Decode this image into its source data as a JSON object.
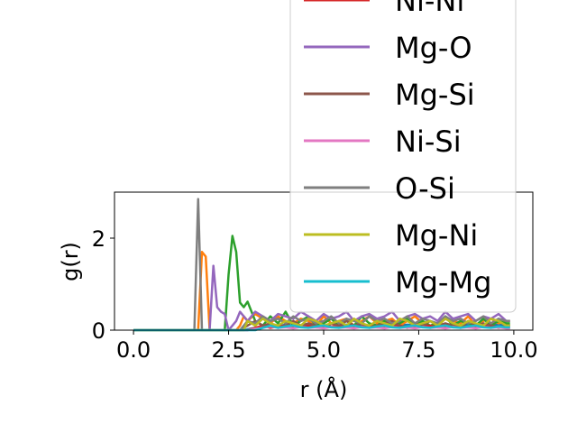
{
  "chart_data": {
    "type": "line",
    "title": "",
    "xlabel": "r (Å)",
    "ylabel": "g(r)",
    "xlim": [
      -0.5,
      10.5
    ],
    "ylim": [
      0,
      3.0
    ],
    "xticks": [
      0.0,
      2.5,
      5.0,
      7.5,
      10.0
    ],
    "xtick_labels": [
      "0.0",
      "2.5",
      "5.0",
      "7.5",
      "10.0"
    ],
    "yticks": [
      0,
      2
    ],
    "ytick_labels": [
      "0",
      "2"
    ],
    "grid": false,
    "legend_position": "top-right (overflowing above plot)",
    "x": [
      0.0,
      0.5,
      1.0,
      1.5,
      1.6,
      1.7,
      1.8,
      1.9,
      2.0,
      2.1,
      2.2,
      2.3,
      2.4,
      2.5,
      2.6,
      2.7,
      2.8,
      2.9,
      3.0,
      3.2,
      3.4,
      3.6,
      3.8,
      4.0,
      4.2,
      4.4,
      4.6,
      4.8,
      5.0,
      5.2,
      5.4,
      5.6,
      5.8,
      6.0,
      6.2,
      6.4,
      6.6,
      6.8,
      7.0,
      7.2,
      7.4,
      7.6,
      7.8,
      8.0,
      8.2,
      8.4,
      8.6,
      8.8,
      9.0,
      9.2,
      9.4,
      9.6,
      9.8,
      9.9
    ],
    "series": [
      {
        "name": "",
        "color": "#1f77b4",
        "values": [
          0,
          0,
          0,
          0,
          0,
          0,
          0,
          0,
          0,
          0,
          0,
          0,
          0,
          0,
          0,
          0,
          0,
          0,
          0.02,
          0.05,
          0.08,
          0.1,
          0.08,
          0.12,
          0.1,
          0.08,
          0.1,
          0.12,
          0.1,
          0.08,
          0.1,
          0.12,
          0.1,
          0.09,
          0.1,
          0.12,
          0.1,
          0.08,
          0.1,
          0.12,
          0.1,
          0.09,
          0.1,
          0.12,
          0.1,
          0.08,
          0.1,
          0.12,
          0.1,
          0.09,
          0.1,
          0.12,
          0.1,
          0.1
        ]
      },
      {
        "name": "",
        "color": "#ff7f0e",
        "values": [
          0,
          0,
          0,
          0,
          0,
          0,
          1.7,
          1.6,
          0,
          0,
          0,
          0,
          0,
          0,
          0,
          0,
          0.1,
          0.3,
          0.2,
          0.35,
          0.25,
          0.15,
          0.3,
          0.2,
          0.15,
          0.25,
          0.2,
          0.1,
          0.3,
          0.15,
          0.2,
          0.25,
          0.1,
          0.2,
          0.3,
          0.15,
          0.2,
          0.25,
          0.1,
          0.2,
          0.3,
          0.15,
          0.2,
          0.1,
          0.25,
          0.2,
          0.15,
          0.3,
          0.1,
          0.2,
          0.25,
          0.15,
          0.2,
          0.2
        ]
      },
      {
        "name": "",
        "color": "#2ca02c",
        "values": [
          0,
          0,
          0,
          0,
          0,
          0,
          0,
          0,
          0,
          0,
          0,
          0,
          0,
          1.2,
          2.05,
          1.7,
          0.6,
          0.5,
          0.62,
          0.2,
          0.1,
          0.3,
          0.15,
          0.4,
          0.1,
          0.2,
          0.3,
          0.1,
          0.15,
          0.25,
          0.1,
          0.2,
          0.1,
          0.3,
          0.15,
          0.1,
          0.2,
          0.1,
          0.15,
          0.25,
          0.1,
          0.2,
          0.1,
          0.15,
          0.3,
          0.1,
          0.2,
          0.15,
          0.1,
          0.25,
          0.1,
          0.2,
          0.15,
          0.15
        ]
      },
      {
        "name": "Ni-Ni",
        "color": "#d62728",
        "values": [
          0,
          0,
          0,
          0,
          0,
          0,
          0,
          0,
          0,
          0,
          0,
          0,
          0,
          0,
          0,
          0,
          0,
          0,
          0,
          0.05,
          0.1,
          0.05,
          0.08,
          0.1,
          0.05,
          0.08,
          0.1,
          0.06,
          0.05,
          0.08,
          0.1,
          0.06,
          0.05,
          0.08,
          0.1,
          0.06,
          0.05,
          0.08,
          0.1,
          0.06,
          0.05,
          0.08,
          0.1,
          0.06,
          0.05,
          0.08,
          0.1,
          0.06,
          0.05,
          0.08,
          0.1,
          0.06,
          0.05,
          0.05
        ]
      },
      {
        "name": "Mg-O",
        "color": "#9467bd",
        "values": [
          0,
          0,
          0,
          0,
          0,
          0,
          0,
          0,
          0,
          1.4,
          0.5,
          0.4,
          0.35,
          0,
          0.1,
          0.2,
          0.4,
          0.3,
          0.2,
          0.4,
          0.3,
          0.2,
          0.35,
          0.3,
          0.25,
          0.4,
          0.3,
          0.2,
          0.35,
          0.25,
          0.3,
          0.4,
          0.2,
          0.3,
          0.35,
          0.25,
          0.3,
          0.4,
          0.2,
          0.3,
          0.35,
          0.25,
          0.3,
          0.2,
          0.4,
          0.25,
          0.3,
          0.35,
          0.2,
          0.3,
          0.25,
          0.35,
          0.2,
          0.2
        ]
      },
      {
        "name": "Mg-Si",
        "color": "#8c564b",
        "values": [
          0,
          0,
          0,
          0,
          0,
          0,
          0,
          0,
          0,
          0,
          0,
          0,
          0,
          0,
          0,
          0,
          0,
          0.05,
          0.1,
          0.2,
          0.1,
          0.15,
          0.05,
          0.1,
          0.2,
          0.1,
          0.15,
          0.1,
          0.05,
          0.15,
          0.1,
          0.2,
          0.1,
          0.15,
          0.05,
          0.1,
          0.15,
          0.2,
          0.1,
          0.05,
          0.15,
          0.1,
          0.2,
          0.1,
          0.15,
          0.1,
          0.05,
          0.2,
          0.1,
          0.15,
          0.1,
          0.05,
          0.1,
          0.1
        ]
      },
      {
        "name": "Ni-Si",
        "color": "#e377c2",
        "values": [
          0,
          0,
          0,
          0,
          0,
          0,
          0,
          0,
          0,
          0,
          0,
          0,
          0,
          0,
          0,
          0,
          0,
          0,
          0,
          0.03,
          0.05,
          0.08,
          0.05,
          0.06,
          0.04,
          0.07,
          0.05,
          0.06,
          0.04,
          0.07,
          0.05,
          0.06,
          0.04,
          0.07,
          0.05,
          0.06,
          0.04,
          0.07,
          0.05,
          0.06,
          0.04,
          0.07,
          0.05,
          0.06,
          0.04,
          0.07,
          0.05,
          0.06,
          0.04,
          0.07,
          0.05,
          0.06,
          0.04,
          0.04
        ]
      },
      {
        "name": "O-Si",
        "color": "#7f7f7f",
        "values": [
          0,
          0,
          0,
          0,
          0,
          2.85,
          0,
          0,
          0,
          0,
          0,
          0,
          0,
          0,
          0,
          0,
          0,
          0.1,
          0.2,
          0.15,
          0.3,
          0.2,
          0.25,
          0.15,
          0.3,
          0.2,
          0.25,
          0.15,
          0.2,
          0.3,
          0.15,
          0.25,
          0.2,
          0.15,
          0.3,
          0.2,
          0.25,
          0.15,
          0.2,
          0.3,
          0.15,
          0.25,
          0.2,
          0.15,
          0.3,
          0.2,
          0.25,
          0.15,
          0.2,
          0.3,
          0.15,
          0.25,
          0.2,
          0.2
        ]
      },
      {
        "name": "Mg-Ni",
        "color": "#bcbd22",
        "values": [
          0,
          0,
          0,
          0,
          0,
          0,
          0,
          0,
          0,
          0,
          0,
          0,
          0,
          0,
          0,
          0,
          0,
          0,
          0.2,
          0.1,
          0.25,
          0.15,
          0.1,
          0.2,
          0.15,
          0.1,
          0.25,
          0.2,
          0.1,
          0.15,
          0.2,
          0.1,
          0.25,
          0.15,
          0.1,
          0.2,
          0.15,
          0.1,
          0.25,
          0.2,
          0.1,
          0.15,
          0.2,
          0.1,
          0.25,
          0.15,
          0.1,
          0.2,
          0.15,
          0.1,
          0.25,
          0.2,
          0.1,
          0.1
        ]
      },
      {
        "name": "Mg-Mg",
        "color": "#17becf",
        "values": [
          0,
          0,
          0,
          0,
          0,
          0,
          0,
          0,
          0,
          0,
          0,
          0,
          0,
          0,
          0,
          0,
          0,
          0,
          0,
          0,
          0.05,
          0.1,
          0.05,
          0.08,
          0.1,
          0.06,
          0.05,
          0.08,
          0.1,
          0.06,
          0.05,
          0.08,
          0.1,
          0.06,
          0.05,
          0.08,
          0.1,
          0.06,
          0.05,
          0.08,
          0.1,
          0.06,
          0.05,
          0.08,
          0.1,
          0.06,
          0.05,
          0.08,
          0.1,
          0.06,
          0.05,
          0.08,
          0.06,
          0.06
        ]
      }
    ]
  }
}
